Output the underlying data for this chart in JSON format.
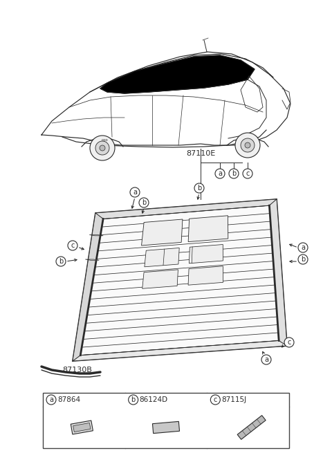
{
  "bg_color": "#ffffff",
  "line_color": "#2a2a2a",
  "circle_fill": "#ffffff",
  "circle_edge": "#2a2a2a",
  "label_87110E": "87110E",
  "label_87130B": "87130B",
  "part_a_code": "87864",
  "part_b_code": "86124D",
  "part_c_code": "87115J",
  "table_line_color": "#444444",
  "glass_fill": "#f8f8f8",
  "mould_fill": "#e0e0e0",
  "defroster_color": "#333333"
}
